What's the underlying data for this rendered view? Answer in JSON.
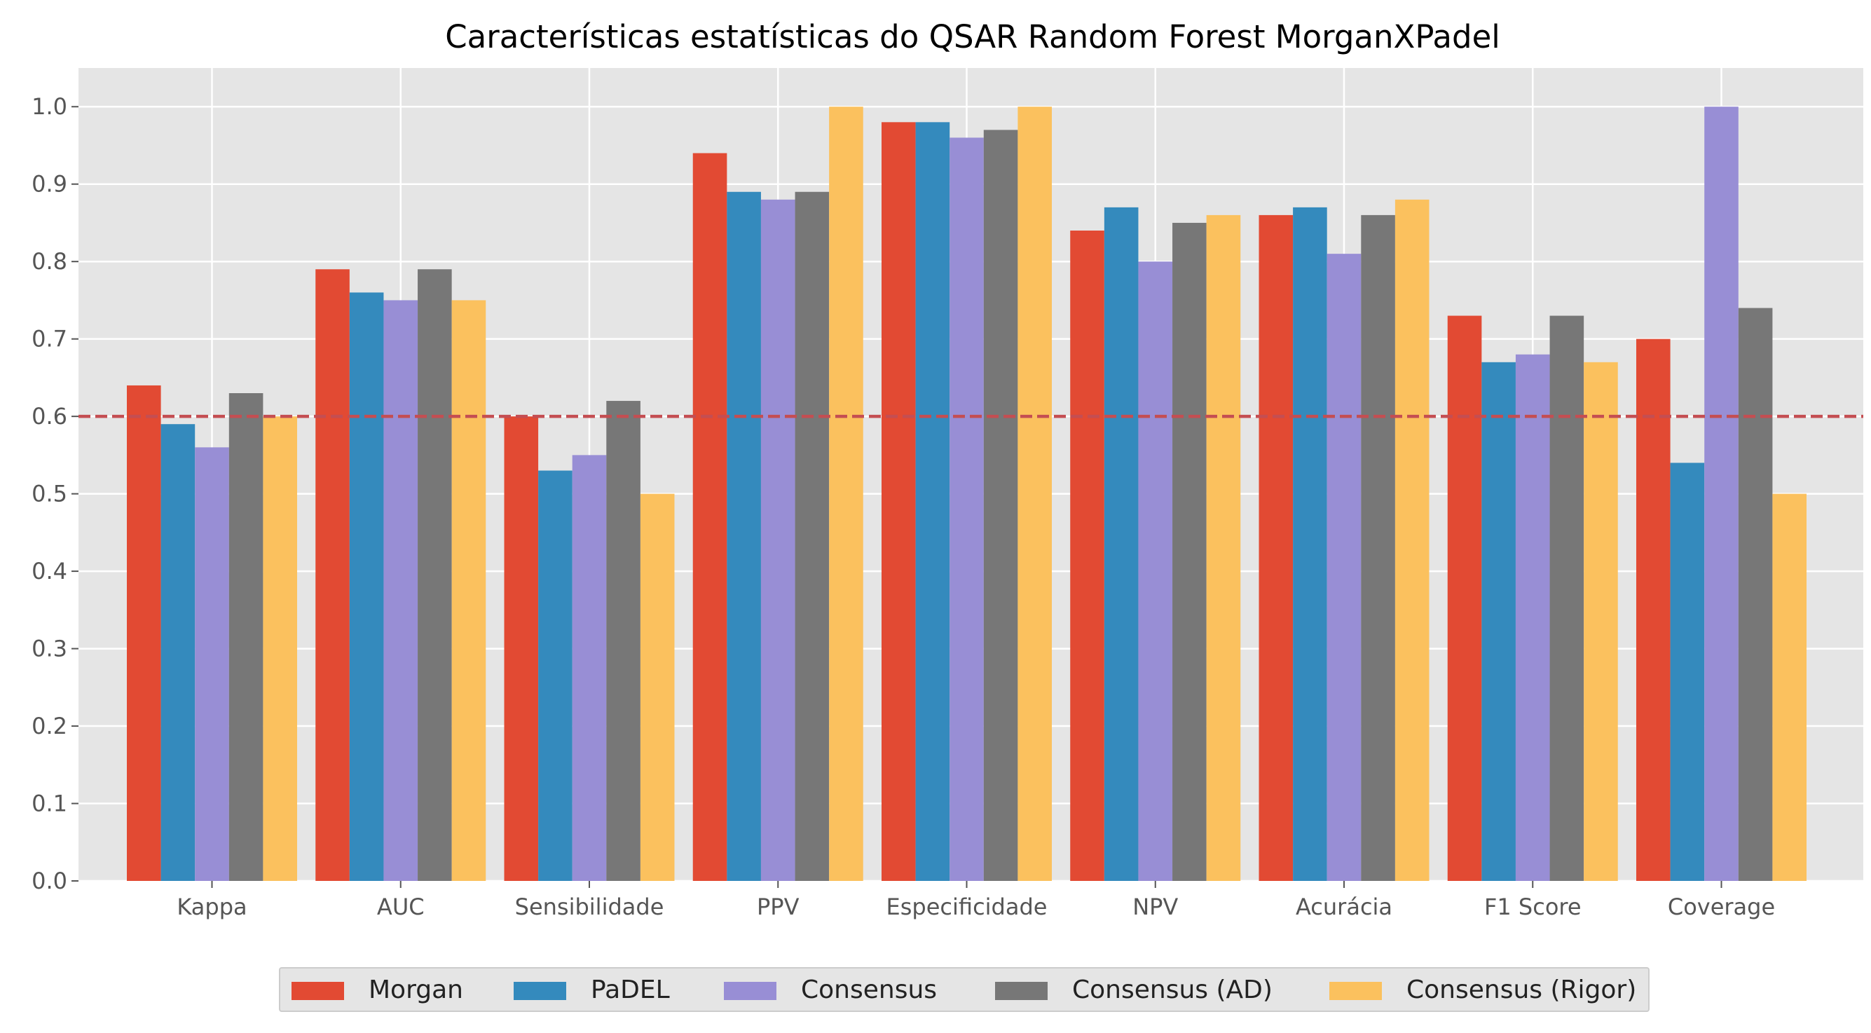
{
  "chart_data": {
    "type": "bar",
    "title": "Características estatísticas do QSAR Random Forest MorganXPadel",
    "xlabel": "",
    "ylabel": "",
    "categories": [
      "Kappa",
      "AUC",
      "Sensibilidade",
      "PPV",
      "Especificidade",
      "NPV",
      "Acurácia",
      "F1 Score",
      "Coverage"
    ],
    "series": [
      {
        "name": "Morgan",
        "color": "#E24A33",
        "values": [
          0.64,
          0.79,
          0.6,
          0.94,
          0.98,
          0.84,
          0.86,
          0.73,
          0.7
        ]
      },
      {
        "name": "PaDEL",
        "color": "#348ABD",
        "values": [
          0.59,
          0.76,
          0.53,
          0.89,
          0.98,
          0.87,
          0.87,
          0.67,
          0.54
        ]
      },
      {
        "name": "Consensus",
        "color": "#988ED5",
        "values": [
          0.56,
          0.75,
          0.55,
          0.88,
          0.96,
          0.8,
          0.81,
          0.68,
          1.0
        ]
      },
      {
        "name": "Consensus (AD)",
        "color": "#777777",
        "values": [
          0.63,
          0.79,
          0.62,
          0.89,
          0.97,
          0.85,
          0.86,
          0.73,
          0.74
        ]
      },
      {
        "name": "Consensus (Rigor)",
        "color": "#FBC15E",
        "values": [
          0.6,
          0.75,
          0.5,
          1.0,
          1.0,
          0.86,
          0.88,
          0.67,
          0.5
        ]
      }
    ],
    "ylim": [
      0,
      1.05
    ],
    "yticks": [
      "0.0",
      "0.1",
      "0.2",
      "0.3",
      "0.4",
      "0.5",
      "0.6",
      "0.7",
      "0.8",
      "0.9",
      "1.0"
    ],
    "reference_line": {
      "value": 0.6,
      "style": "dashed",
      "color": "#C44E52"
    },
    "grid": true,
    "background": "#E5E5E5",
    "legend_position": "bottom-center"
  }
}
